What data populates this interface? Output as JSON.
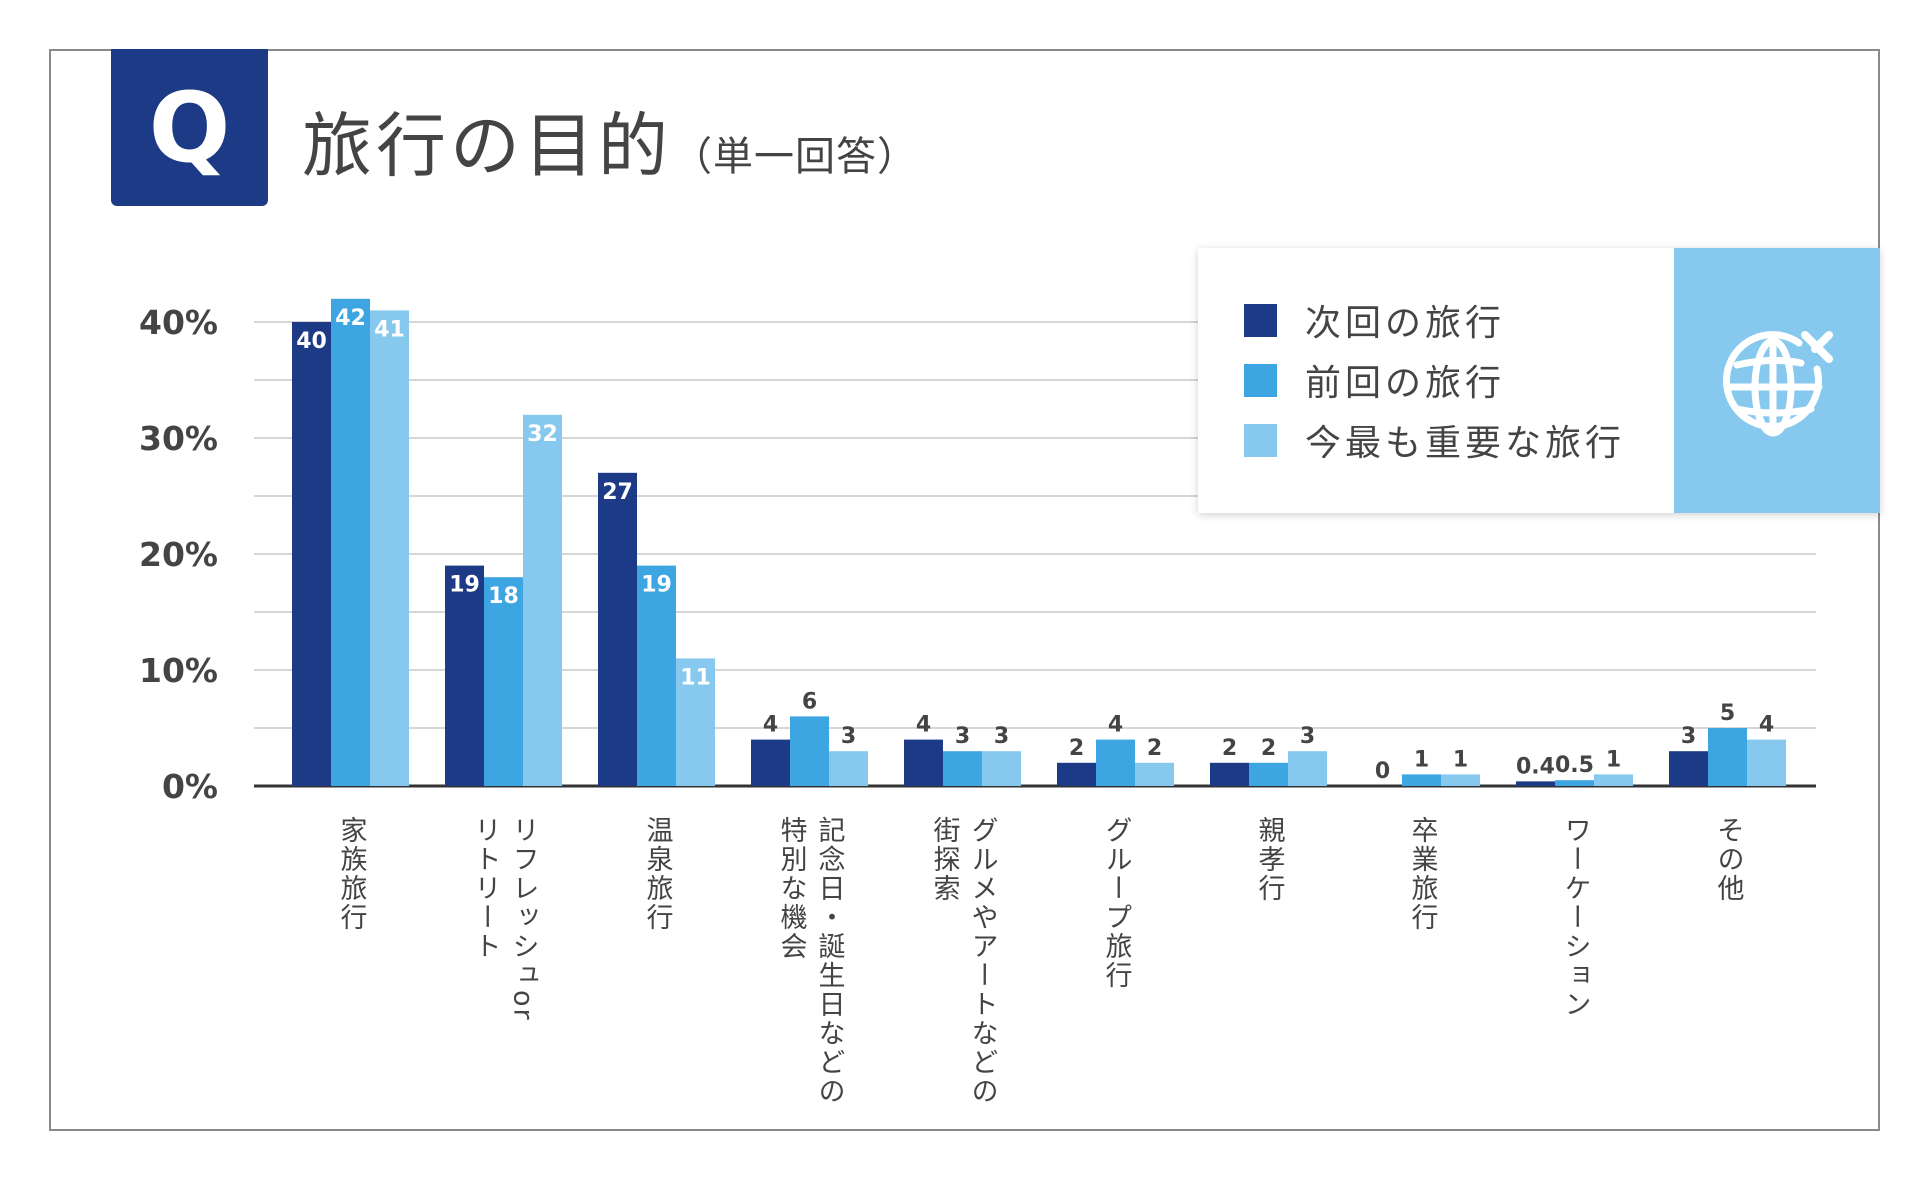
{
  "header": {
    "badge": "Q",
    "title": "旅行の目的",
    "subtitle": "（単一回答）"
  },
  "colors": {
    "accent": "#1c3a85",
    "series": [
      "#1c3a85",
      "#3ea5e3",
      "#87c9ee"
    ],
    "grid": "#c8c8c8",
    "axis": "#333333"
  },
  "legend": {
    "items": [
      "次回の旅行",
      "前回の旅行",
      "今最も重要な旅行"
    ],
    "icon": "globe-plane-icon"
  },
  "chart_data": {
    "type": "bar",
    "title": "旅行の目的（単一回答）",
    "xlabel": "",
    "ylabel": "",
    "ylim": [
      0,
      40
    ],
    "yticks": [
      "0%",
      "10%",
      "20%",
      "30%",
      "40%"
    ],
    "categories": [
      "家族旅行",
      "リフレッシュor\nリトリート",
      "温泉旅行",
      "記念日・誕生日などの\n特別な機会",
      "グルメやアートなどの\n街探索",
      "グループ旅行",
      "親孝行",
      "卒業旅行",
      "ワーケーション",
      "その他"
    ],
    "series": [
      {
        "name": "次回の旅行",
        "values": [
          40,
          19,
          27,
          4,
          4,
          2,
          2,
          0,
          0.4,
          3
        ],
        "labels": [
          "40",
          "19",
          "27",
          "4",
          "4",
          "2",
          "2",
          "0",
          "0.4",
          "3"
        ]
      },
      {
        "name": "前回の旅行",
        "values": [
          42,
          18,
          19,
          6,
          3,
          4,
          2,
          1,
          0.5,
          5
        ],
        "labels": [
          "42",
          "18",
          "19",
          "6",
          "3",
          "4",
          "2",
          "1",
          "0.5",
          "5"
        ]
      },
      {
        "name": "今最も重要な旅行",
        "values": [
          41,
          32,
          11,
          3,
          3,
          2,
          3,
          1,
          1,
          4
        ],
        "labels": [
          "41",
          "32",
          "11",
          "3",
          "3",
          "2",
          "3",
          "1",
          "1",
          "4"
        ]
      }
    ]
  }
}
